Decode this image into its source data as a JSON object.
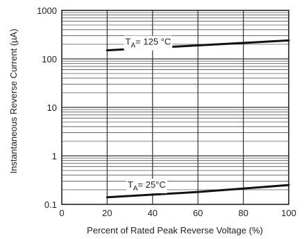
{
  "chart_data": {
    "type": "line",
    "title": "",
    "xlabel": "Percent of Rated Peak Reverse Voltage (%)",
    "ylabel": "Instantaneous Reverse Current (µA)",
    "xscale": "linear",
    "yscale": "log",
    "xlim": [
      0,
      100
    ],
    "ylim": [
      0.1,
      1000
    ],
    "x_ticks": [
      0,
      20,
      40,
      60,
      80,
      100
    ],
    "x_tick_labels": [
      "0",
      "20",
      "40",
      "60",
      "80",
      "100"
    ],
    "y_ticks": [
      0.1,
      1,
      10,
      100,
      1000
    ],
    "y_tick_labels": [
      "0.1",
      "1",
      "10",
      "100",
      "1000"
    ],
    "grid": true,
    "series": [
      {
        "x": [
          20,
          60,
          100
        ],
        "y": [
          150,
          190,
          240
        ],
        "color": "#111111",
        "annotation": {
          "main": "T",
          "sub": "A",
          "rest": "= 125 °C",
          "x": 28,
          "y": 230
        }
      },
      {
        "x": [
          20,
          60,
          100
        ],
        "y": [
          0.14,
          0.18,
          0.25
        ],
        "color": "#111111",
        "annotation": {
          "main": "T",
          "sub": "A",
          "rest": "= 25°C",
          "x": 29,
          "y": 0.26
        }
      }
    ]
  }
}
